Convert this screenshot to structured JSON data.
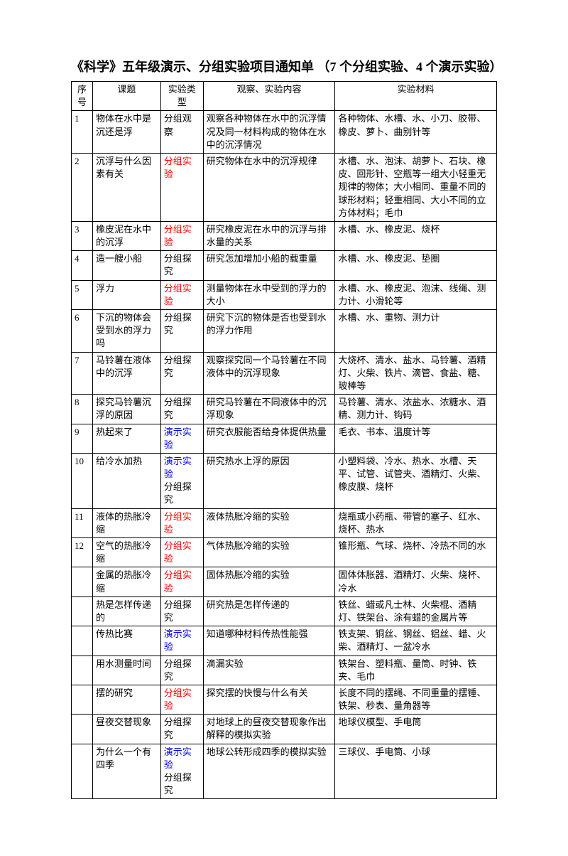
{
  "title": "《科学》五年级演示、分组实验项目通知单 （7 个分组实验、4 个演示实验）",
  "headers": {
    "seq": "序号",
    "topic": "课题",
    "type": "实验类型",
    "content": "观察、实验内容",
    "material": "实验材料"
  },
  "rows": [
    {
      "seq": "1",
      "topic": "物体在水中是沉还是浮",
      "type": "分组观察",
      "typeClass": "",
      "content": "观察各种物体在水中的沉浮情况及同一材料构成的物体在水中的沉浮情况",
      "material": "各种物体、水槽、水、小刀、胶带、橡皮、萝卜、曲别针等"
    },
    {
      "seq": "2",
      "topic": "沉浮与什么因素有关",
      "type": "分组实验",
      "typeClass": "red",
      "content": "研究物体在水中的沉浮规律",
      "material": "水槽、水、泡沫、胡萝卜、石块、橡皮、回形针、空瓶等一组大小轻重无规律的物体；大小相同、重量不同的球形材料；轻重相同、大小不同的立方体材料；毛巾"
    },
    {
      "seq": "3",
      "topic": "橡皮泥在水中的沉浮",
      "type": "分组实验",
      "typeClass": "red",
      "content": "研究橡皮泥在水中的沉浮与排水量的关系",
      "material": "水槽、水、橡皮泥、烧杯"
    },
    {
      "seq": "4",
      "topic": "造一艘小船",
      "type": "分组探究",
      "typeClass": "",
      "content": "研究怎加增加小船的载重量",
      "material": "水槽、水、橡皮泥、垫圈"
    },
    {
      "seq": "5",
      "topic": "浮力",
      "type": "分组实验",
      "typeClass": "red",
      "content": "测量物体在水中受到的浮力的大小",
      "material": "水槽、水、橡皮泥、泡沫、线绳、测力计、小滑轮等"
    },
    {
      "seq": "6",
      "topic": "下沉的物体会受到水的浮力吗",
      "type": "分组探究",
      "typeClass": "",
      "content": "研究下沉的物体是否也受到水的浮力作用",
      "material": "水槽、水、重物、测力计"
    },
    {
      "seq": "7",
      "topic": "马铃薯在液体中的沉浮",
      "type": "分组探究",
      "typeClass": "",
      "content": "观察探究同一个马铃薯在不同液体中的沉浮现象",
      "material": "大烧杯、清水、盐水、马铃薯、酒精灯、火柴、铁片、滴管、食盐、糖、玻棒等"
    },
    {
      "seq": "8",
      "topic": "探究马铃薯沉浮的原因",
      "type": "分组探究",
      "typeClass": "",
      "content": "研究马铃薯在不同液体中的沉浮现象",
      "material": "马铃薯、清水、浓盐水、浓糖水、酒精、测力计、钩码"
    },
    {
      "seq": "9",
      "topic": "热起来了",
      "type": "演示实验",
      "typeClass": "blue",
      "content": "研究衣服能否给身体提供热量",
      "material": "毛衣、书本、温度计等"
    },
    {
      "seq": "10",
      "topic": "给冷水加热",
      "type": "演示实验\n分组探究",
      "typeClass": "blue",
      "content": "研究热水上浮的原因",
      "material": "小塑料袋、冷水、热水、水槽、天平、试管、试管夹、酒精灯、火柴、橡皮膜、烧杯"
    },
    {
      "seq": "11",
      "topic": "液体的热胀冷缩",
      "type": "分组实验",
      "typeClass": "red",
      "content": "液体热胀冷缩的实验",
      "material": "烧瓶或小药瓶、带管的塞子、红水、烧杯、热水"
    },
    {
      "seq": "12",
      "topic": "空气的热胀冷缩",
      "type": "分组实验",
      "typeClass": "red",
      "content": "气体热胀冷缩的实验",
      "material": "锥形瓶、气球、烧杯、冷热不同的水"
    },
    {
      "seq": "",
      "topic": "金属的热胀冷缩",
      "type": "分组实验",
      "typeClass": "red",
      "content": "固体热胀冷缩的实验",
      "material": "固体体胀器、酒精灯、火柴、烧杯、冷水"
    },
    {
      "seq": "",
      "topic": "热是怎样传递的",
      "type": "分组探究",
      "typeClass": "",
      "content": "研究热是怎样传递的",
      "material": "铁丝、蜡或凡士林、火柴棍、酒精灯、铁架台、涂有蜡的金属片等"
    },
    {
      "seq": "",
      "topic": "传热比赛",
      "type": "演示实验",
      "typeClass": "blue",
      "content": "知道哪种材料传热性能强",
      "material": "铁支架、铜丝、钢丝、铝丝、蜡、火柴、酒精灯、一盆冷水"
    },
    {
      "seq": "",
      "topic": "用水测量时间",
      "type": "分组探究",
      "typeClass": "",
      "content": "滴漏实验",
      "material": "铁架台、塑料瓶、量筒、时钟、铁夹、毛巾"
    },
    {
      "seq": "",
      "topic": "摆的研究",
      "type": "分组实验",
      "typeClass": "red",
      "content": "探究摆的快慢与什么有关",
      "material": "长度不同的摆绳、不同重量的摆锤、铁架、秒表、量角器等"
    },
    {
      "seq": "",
      "topic": "昼夜交替现象",
      "type": "分组探究",
      "typeClass": "",
      "content": "对地球上的昼夜交替现象作出解释的模拟实验",
      "material": "地球仪模型、手电筒"
    },
    {
      "seq": "",
      "topic": "为什么一个有四季",
      "type": "演示实验\n分组探究",
      "typeClass": "blue",
      "content": "地球公转形成四季的模拟实验",
      "material": "三球仪、手电筒、小球"
    }
  ]
}
